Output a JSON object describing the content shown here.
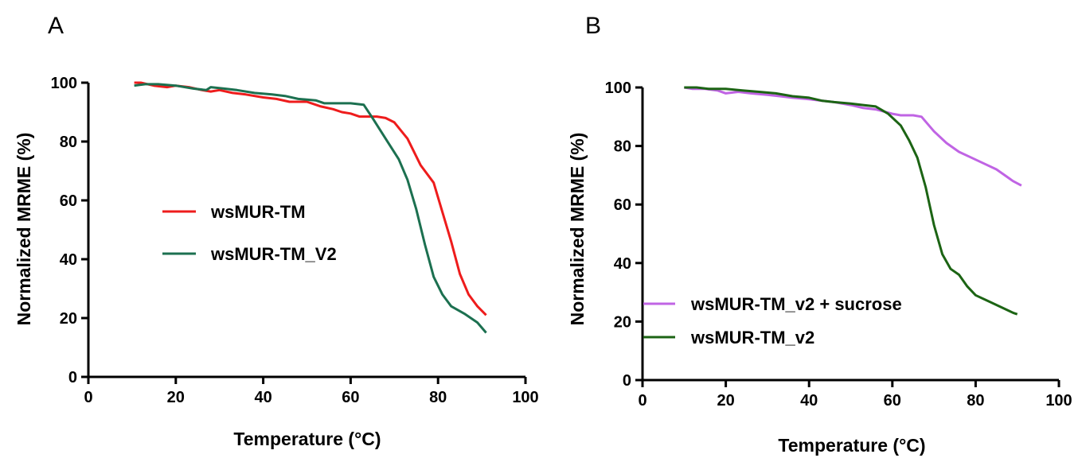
{
  "chart_data": [
    {
      "type": "line",
      "panel_label": "A",
      "xlabel": "Temperature (°C)",
      "ylabel": "Normalized MRME (%)",
      "xlim": [
        0,
        100
      ],
      "ylim": [
        0,
        100
      ],
      "x_ticks": [
        0,
        20,
        40,
        60,
        80,
        100
      ],
      "y_ticks": [
        0,
        20,
        40,
        60,
        80,
        100
      ],
      "legend_position": "center-left",
      "series": [
        {
          "name": "wsMUR-TM",
          "color": "#ee1c1c",
          "points": [
            [
              10.5,
              100
            ],
            [
              12,
              100
            ],
            [
              15,
              99
            ],
            [
              18,
              98.5
            ],
            [
              20,
              99
            ],
            [
              23,
              98.5
            ],
            [
              26,
              97.5
            ],
            [
              28,
              97
            ],
            [
              30,
              97.5
            ],
            [
              33,
              96.5
            ],
            [
              36,
              96
            ],
            [
              40,
              95
            ],
            [
              43,
              94.5
            ],
            [
              46,
              93.5
            ],
            [
              50,
              93.5
            ],
            [
              53,
              92
            ],
            [
              56,
              91
            ],
            [
              58,
              90
            ],
            [
              60,
              89.5
            ],
            [
              62,
              88.5
            ],
            [
              64,
              88.5
            ],
            [
              66,
              88.5
            ],
            [
              68,
              88
            ],
            [
              70,
              86.5
            ],
            [
              73,
              81
            ],
            [
              76,
              72
            ],
            [
              79,
              66
            ],
            [
              81,
              56
            ],
            [
              83,
              46
            ],
            [
              85,
              35
            ],
            [
              87,
              28
            ],
            [
              89,
              24
            ],
            [
              91,
              21
            ]
          ]
        },
        {
          "name": "wsMUR-TM_V2",
          "color": "#1c7050",
          "points": [
            [
              10.5,
              99
            ],
            [
              13,
              99.5
            ],
            [
              16,
              99.5
            ],
            [
              20,
              99
            ],
            [
              24,
              98
            ],
            [
              27,
              97.5
            ],
            [
              28,
              98.5
            ],
            [
              31,
              98
            ],
            [
              34,
              97.5
            ],
            [
              38,
              96.5
            ],
            [
              42,
              96
            ],
            [
              45,
              95.5
            ],
            [
              48,
              94.5
            ],
            [
              52,
              94
            ],
            [
              54,
              93
            ],
            [
              56,
              93
            ],
            [
              60,
              93
            ],
            [
              63,
              92.5
            ],
            [
              65,
              88
            ],
            [
              68,
              81
            ],
            [
              71,
              74
            ],
            [
              73,
              67
            ],
            [
              75,
              57
            ],
            [
              77,
              45
            ],
            [
              79,
              34
            ],
            [
              81,
              28
            ],
            [
              83,
              24
            ],
            [
              86,
              21.5
            ],
            [
              89,
              18.5
            ],
            [
              91,
              15
            ]
          ]
        }
      ]
    },
    {
      "type": "line",
      "panel_label": "B",
      "xlabel": "Temperature (°C)",
      "ylabel": "Normalized MRME (%)",
      "xlim": [
        0,
        100
      ],
      "ylim": [
        0,
        100
      ],
      "x_ticks": [
        0,
        20,
        40,
        60,
        80,
        100
      ],
      "y_ticks": [
        0,
        20,
        40,
        60,
        80,
        100
      ],
      "legend_position": "bottom-left",
      "series": [
        {
          "name": "wsMUR-TM_v2 + sucrose",
          "color": "#c064e4",
          "points": [
            [
              10,
              100
            ],
            [
              12,
              99.5
            ],
            [
              15,
              99.5
            ],
            [
              18,
              99
            ],
            [
              20,
              98
            ],
            [
              23,
              98.5
            ],
            [
              26,
              98
            ],
            [
              30,
              97.5
            ],
            [
              33,
              97
            ],
            [
              36,
              96.5
            ],
            [
              40,
              96
            ],
            [
              43,
              95.5
            ],
            [
              46,
              95
            ],
            [
              50,
              94
            ],
            [
              53,
              93
            ],
            [
              56,
              92.5
            ],
            [
              60,
              91
            ],
            [
              62,
              90.5
            ],
            [
              65,
              90.5
            ],
            [
              67,
              90
            ],
            [
              70,
              85
            ],
            [
              73,
              81
            ],
            [
              76,
              78
            ],
            [
              79,
              76
            ],
            [
              82,
              74
            ],
            [
              85,
              72
            ],
            [
              87,
              70
            ],
            [
              89,
              68
            ],
            [
              91,
              66.5
            ]
          ]
        },
        {
          "name": "wsMUR-TM_v2",
          "color": "#1c6414",
          "points": [
            [
              10,
              100
            ],
            [
              13,
              100
            ],
            [
              16,
              99.5
            ],
            [
              20,
              99.5
            ],
            [
              24,
              99
            ],
            [
              28,
              98.5
            ],
            [
              32,
              98
            ],
            [
              36,
              97
            ],
            [
              40,
              96.5
            ],
            [
              43,
              95.5
            ],
            [
              46,
              95
            ],
            [
              50,
              94.5
            ],
            [
              53,
              94
            ],
            [
              56,
              93.5
            ],
            [
              59,
              91
            ],
            [
              62,
              87
            ],
            [
              64,
              82
            ],
            [
              66,
              76
            ],
            [
              68,
              66
            ],
            [
              70,
              53
            ],
            [
              72,
              43
            ],
            [
              74,
              38
            ],
            [
              76,
              36
            ],
            [
              78,
              32
            ],
            [
              80,
              29
            ],
            [
              83,
              27
            ],
            [
              86,
              25
            ],
            [
              89,
              23
            ],
            [
              90,
              22.5
            ]
          ]
        }
      ]
    }
  ]
}
